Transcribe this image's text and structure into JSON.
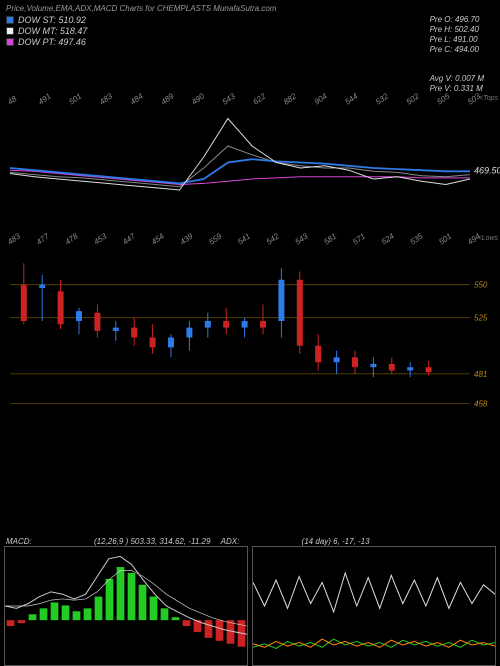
{
  "title": "Price,Volume,EMA,ADX,MACD Charts for CHEMPLASTS MunafaSutra.com",
  "legend": {
    "st": {
      "label": "DOW ST:",
      "value": "510.92",
      "color": "#2e7ae6"
    },
    "mt": {
      "label": "DOW MT:",
      "value": "518.47",
      "color": "#eeeeee"
    },
    "pt": {
      "label": "DOW PT:",
      "value": "497.46",
      "color": "#d946d9"
    }
  },
  "pre": {
    "o": {
      "k": "Pre   O:",
      "v": "496.70"
    },
    "h": {
      "k": "Pre   H:",
      "v": "502.40"
    },
    "l": {
      "k": "Pre   L:",
      "v": "491.00"
    },
    "c": {
      "k": "Pre   C:",
      "v": "494.00"
    },
    "avgv": {
      "k": "Avg V:",
      "v": "0.007 M"
    },
    "prev": {
      "k": "Pre  V:",
      "v": "0.331 M"
    }
  },
  "upper_chart": {
    "type": "line",
    "x_labels": [
      "48",
      "491",
      "501",
      "483",
      "484",
      "489",
      "490",
      "543",
      "622",
      "882",
      "904",
      "544",
      "532",
      "502",
      "505",
      "503"
    ],
    "tag_top": "<Tops",
    "y_ref_label": "469.50",
    "background": "#000000",
    "line_white": [
      0.45,
      0.42,
      0.4,
      0.38,
      0.36,
      0.34,
      0.32,
      0.3,
      0.6,
      0.95,
      0.7,
      0.55,
      0.5,
      0.52,
      0.48,
      0.4,
      0.42,
      0.38,
      0.35,
      0.4
    ],
    "line_blue": [
      0.5,
      0.48,
      0.46,
      0.44,
      0.42,
      0.4,
      0.38,
      0.36,
      0.4,
      0.55,
      0.58,
      0.56,
      0.55,
      0.54,
      0.52,
      0.5,
      0.49,
      0.48,
      0.47,
      0.47
    ],
    "line_pink": [
      0.48,
      0.47,
      0.45,
      0.43,
      0.41,
      0.39,
      0.37,
      0.35,
      0.36,
      0.38,
      0.4,
      0.41,
      0.42,
      0.42,
      0.42,
      0.42,
      0.42,
      0.41,
      0.41,
      0.41
    ],
    "line_gray": [
      0.46,
      0.44,
      0.42,
      0.41,
      0.39,
      0.37,
      0.35,
      0.33,
      0.5,
      0.7,
      0.62,
      0.55,
      0.52,
      0.5,
      0.5,
      0.47,
      0.46,
      0.43,
      0.42,
      0.44
    ],
    "colors": {
      "white": "#dddddd",
      "blue": "#2e7ae6",
      "pink": "#d946d9",
      "gray": "#888888"
    }
  },
  "candle_chart": {
    "type": "candlestick",
    "x_labels": [
      "483",
      "477",
      "478",
      "453",
      "447",
      "454",
      "439",
      "559",
      "541",
      "542",
      "543",
      "581",
      "571",
      "524",
      "535",
      "501",
      "494"
    ],
    "tag": "<Lows",
    "hlines": [
      {
        "v": "550",
        "y": 0.18
      },
      {
        "v": "525",
        "y": 0.38
      },
      {
        "v": "481",
        "y": 0.72
      },
      {
        "v": "458",
        "y": 0.9
      }
    ],
    "grid_color": "#8b6508",
    "candles": [
      {
        "x": 0.03,
        "o": 0.18,
        "h": 0.05,
        "l": 0.42,
        "c": 0.4,
        "up": false
      },
      {
        "x": 0.07,
        "o": 0.2,
        "h": 0.12,
        "l": 0.4,
        "c": 0.18,
        "up": true
      },
      {
        "x": 0.11,
        "o": 0.22,
        "h": 0.15,
        "l": 0.45,
        "c": 0.42,
        "up": false
      },
      {
        "x": 0.15,
        "o": 0.4,
        "h": 0.32,
        "l": 0.48,
        "c": 0.34,
        "up": true
      },
      {
        "x": 0.19,
        "o": 0.35,
        "h": 0.3,
        "l": 0.5,
        "c": 0.46,
        "up": false
      },
      {
        "x": 0.23,
        "o": 0.46,
        "h": 0.4,
        "l": 0.52,
        "c": 0.44,
        "up": true
      },
      {
        "x": 0.27,
        "o": 0.44,
        "h": 0.38,
        "l": 0.55,
        "c": 0.5,
        "up": false
      },
      {
        "x": 0.31,
        "o": 0.5,
        "h": 0.42,
        "l": 0.6,
        "c": 0.56,
        "up": false
      },
      {
        "x": 0.35,
        "o": 0.56,
        "h": 0.48,
        "l": 0.62,
        "c": 0.5,
        "up": true
      },
      {
        "x": 0.39,
        "o": 0.5,
        "h": 0.4,
        "l": 0.58,
        "c": 0.44,
        "up": true
      },
      {
        "x": 0.43,
        "o": 0.44,
        "h": 0.35,
        "l": 0.5,
        "c": 0.4,
        "up": true
      },
      {
        "x": 0.47,
        "o": 0.4,
        "h": 0.32,
        "l": 0.48,
        "c": 0.44,
        "up": false
      },
      {
        "x": 0.51,
        "o": 0.44,
        "h": 0.38,
        "l": 0.5,
        "c": 0.4,
        "up": true
      },
      {
        "x": 0.55,
        "o": 0.4,
        "h": 0.3,
        "l": 0.48,
        "c": 0.44,
        "up": false
      },
      {
        "x": 0.59,
        "o": 0.4,
        "h": 0.08,
        "l": 0.5,
        "c": 0.15,
        "up": true
      },
      {
        "x": 0.63,
        "o": 0.15,
        "h": 0.1,
        "l": 0.6,
        "c": 0.55,
        "up": false
      },
      {
        "x": 0.67,
        "o": 0.55,
        "h": 0.48,
        "l": 0.7,
        "c": 0.65,
        "up": false
      },
      {
        "x": 0.71,
        "o": 0.65,
        "h": 0.58,
        "l": 0.72,
        "c": 0.62,
        "up": true
      },
      {
        "x": 0.75,
        "o": 0.62,
        "h": 0.58,
        "l": 0.72,
        "c": 0.68,
        "up": false
      },
      {
        "x": 0.79,
        "o": 0.68,
        "h": 0.62,
        "l": 0.74,
        "c": 0.66,
        "up": true
      },
      {
        "x": 0.83,
        "o": 0.66,
        "h": 0.62,
        "l": 0.72,
        "c": 0.7,
        "up": false
      },
      {
        "x": 0.87,
        "o": 0.7,
        "h": 0.65,
        "l": 0.74,
        "c": 0.68,
        "up": true
      },
      {
        "x": 0.91,
        "o": 0.68,
        "h": 0.64,
        "l": 0.73,
        "c": 0.71,
        "up": false
      }
    ],
    "up_color": "#2e7ae6",
    "down_color": "#cc2222"
  },
  "macd": {
    "label": "MACD:",
    "params": "(12,26,9 ) 503.33,  314.62,  -11.29",
    "adx_label": "ADX:",
    "adx_params": "(14   day) 6,  -17,  -13",
    "hist": [
      -0.1,
      -0.05,
      0.1,
      0.2,
      0.3,
      0.25,
      0.15,
      0.2,
      0.4,
      0.7,
      0.9,
      0.8,
      0.6,
      0.4,
      0.2,
      0.05,
      -0.1,
      -0.2,
      -0.3,
      -0.35,
      -0.4,
      -0.45
    ],
    "hist_pos_color": "#22cc22",
    "hist_neg_color": "#cc2222",
    "lines": {
      "a": [
        0.5,
        0.48,
        0.52,
        0.58,
        0.62,
        0.6,
        0.56,
        0.6,
        0.75,
        0.9,
        0.92,
        0.85,
        0.72,
        0.6,
        0.5,
        0.45,
        0.4,
        0.36,
        0.33,
        0.3,
        0.28,
        0.26
      ],
      "b": [
        0.5,
        0.5,
        0.5,
        0.52,
        0.55,
        0.56,
        0.55,
        0.56,
        0.62,
        0.72,
        0.8,
        0.8,
        0.75,
        0.68,
        0.6,
        0.54,
        0.48,
        0.44,
        0.4,
        0.37,
        0.35,
        0.33
      ]
    }
  },
  "adx": {
    "white": [
      0.7,
      0.5,
      0.72,
      0.48,
      0.75,
      0.52,
      0.7,
      0.45,
      0.78,
      0.5,
      0.74,
      0.48,
      0.76,
      0.52,
      0.72,
      0.5,
      0.74,
      0.48,
      0.7,
      0.52,
      0.68,
      0.6
    ],
    "green": [
      0.15,
      0.18,
      0.14,
      0.2,
      0.16,
      0.19,
      0.15,
      0.22,
      0.17,
      0.2,
      0.16,
      0.19,
      0.15,
      0.21,
      0.17,
      0.2,
      0.16,
      0.19,
      0.15,
      0.21,
      0.17,
      0.19
    ],
    "orange": [
      0.18,
      0.15,
      0.2,
      0.16,
      0.19,
      0.15,
      0.22,
      0.17,
      0.2,
      0.16,
      0.19,
      0.15,
      0.21,
      0.17,
      0.2,
      0.16,
      0.19,
      0.15,
      0.21,
      0.17,
      0.19,
      0.16
    ],
    "colors": {
      "white": "#dddddd",
      "green": "#22cc22",
      "orange": "#ff8800"
    }
  }
}
